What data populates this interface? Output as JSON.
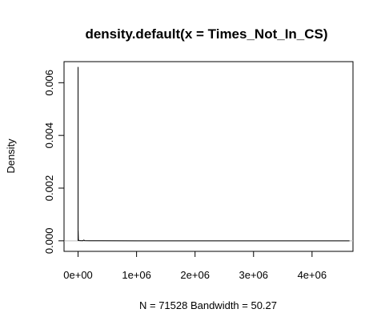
{
  "chart_data": {
    "type": "line",
    "title": "density.default(x = Times_Not_In_CS)",
    "xlabel": "N = 71528   Bandwidth = 50.27",
    "ylabel": "Density",
    "xlim": [
      -240000,
      4700000
    ],
    "ylim": [
      -0.0004,
      0.0068
    ],
    "x_ticks": [
      {
        "value": 0,
        "label": "0e+00"
      },
      {
        "value": 1000000,
        "label": "1e+06"
      },
      {
        "value": 2000000,
        "label": "2e+06"
      },
      {
        "value": 3000000,
        "label": "3e+06"
      },
      {
        "value": 4000000,
        "label": "4e+06"
      }
    ],
    "y_ticks": [
      {
        "value": 0.0,
        "label": "0.000"
      },
      {
        "value": 0.002,
        "label": "0.002"
      },
      {
        "value": 0.004,
        "label": "0.004"
      },
      {
        "value": 0.006,
        "label": "0.006"
      }
    ],
    "zero_line_color": "#bebebe",
    "line_color": "#000000",
    "grid": false,
    "series": [
      {
        "x": [
          -200,
          0,
          150,
          300,
          1500,
          5000,
          8000,
          30000,
          80000,
          100000,
          110000,
          200000,
          1000000,
          2000000,
          3000000,
          4000000,
          4640000
        ],
        "y": [
          0,
          0.0066,
          0.0035,
          0.0004,
          0.00038,
          8e-05,
          2e-05,
          5e-06,
          4e-06,
          3e-05,
          5e-06,
          2e-06,
          5e-07,
          3e-07,
          2e-07,
          2e-07,
          0
        ]
      }
    ]
  }
}
